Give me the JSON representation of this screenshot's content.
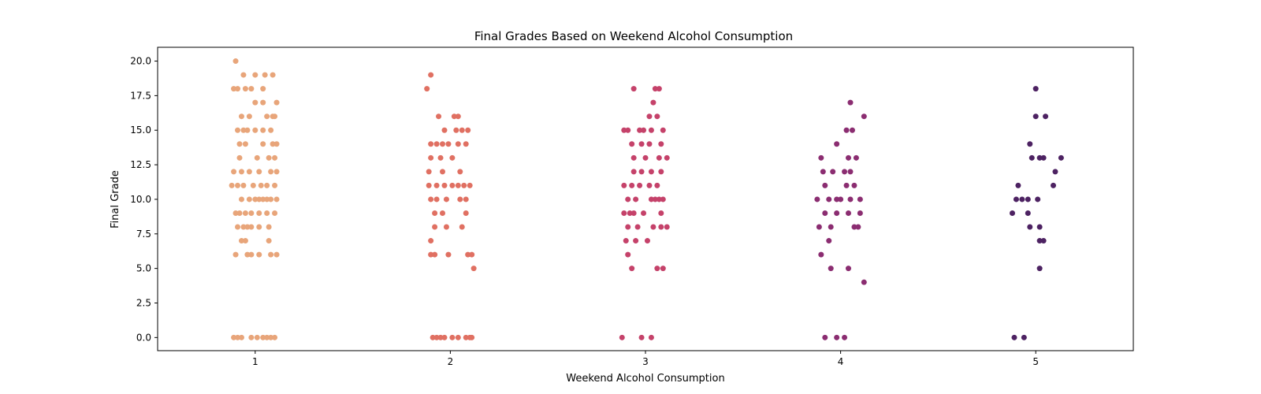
{
  "chart_data": {
    "type": "scatter",
    "subtype": "strip",
    "title": "Final Grades Based on Weekend Alcohol Consumption",
    "xlabel": "Weekend Alcohol Consumption",
    "ylabel": "Final Grade",
    "categories": [
      "1",
      "2",
      "3",
      "4",
      "5"
    ],
    "x_tick_labels": [
      "1",
      "2",
      "3",
      "4",
      "5"
    ],
    "y_tick_labels": [
      "0.0",
      "2.5",
      "5.0",
      "7.5",
      "10.0",
      "12.5",
      "15.0",
      "17.5",
      "20.0"
    ],
    "y_ticks": [
      0,
      2.5,
      5,
      7.5,
      10,
      12.5,
      15,
      17.5,
      20
    ],
    "ylim": [
      -0.95,
      21
    ],
    "xlim": [
      0.5,
      5.5
    ],
    "grid": false,
    "legend": "none",
    "colors": [
      "#e8a57a",
      "#e07062",
      "#c5426a",
      "#8b2d71",
      "#4d2262"
    ],
    "series": [
      {
        "category": "1",
        "color": "#e8a57a",
        "points": [
          {
            "x": -0.1,
            "y": 20
          },
          {
            "x": -0.11,
            "y": 18
          },
          {
            "x": -0.09,
            "y": 18
          },
          {
            "x": -0.05,
            "y": 18
          },
          {
            "x": 0.04,
            "y": 18
          },
          {
            "x": 0.0,
            "y": 19
          },
          {
            "x": 0.05,
            "y": 19
          },
          {
            "x": 0.09,
            "y": 19
          },
          {
            "x": -0.06,
            "y": 19
          },
          {
            "x": 0.04,
            "y": 17
          },
          {
            "x": 0.11,
            "y": 17
          },
          {
            "x": -0.02,
            "y": 18
          },
          {
            "x": 0.0,
            "y": 17
          },
          {
            "x": -0.07,
            "y": 16
          },
          {
            "x": -0.03,
            "y": 16
          },
          {
            "x": 0.06,
            "y": 16
          },
          {
            "x": 0.09,
            "y": 16
          },
          {
            "x": 0.1,
            "y": 16
          },
          {
            "x": -0.09,
            "y": 15
          },
          {
            "x": -0.06,
            "y": 15
          },
          {
            "x": -0.04,
            "y": 15
          },
          {
            "x": 0.0,
            "y": 15
          },
          {
            "x": 0.04,
            "y": 15
          },
          {
            "x": 0.08,
            "y": 15
          },
          {
            "x": -0.08,
            "y": 14
          },
          {
            "x": -0.05,
            "y": 14
          },
          {
            "x": 0.04,
            "y": 14
          },
          {
            "x": 0.09,
            "y": 14
          },
          {
            "x": 0.11,
            "y": 14
          },
          {
            "x": -0.08,
            "y": 13
          },
          {
            "x": 0.01,
            "y": 13
          },
          {
            "x": 0.07,
            "y": 13
          },
          {
            "x": 0.1,
            "y": 13
          },
          {
            "x": -0.11,
            "y": 12
          },
          {
            "x": -0.07,
            "y": 12
          },
          {
            "x": -0.03,
            "y": 12
          },
          {
            "x": 0.02,
            "y": 12
          },
          {
            "x": 0.08,
            "y": 12
          },
          {
            "x": 0.11,
            "y": 12
          },
          {
            "x": -0.12,
            "y": 11
          },
          {
            "x": -0.09,
            "y": 11
          },
          {
            "x": -0.06,
            "y": 11
          },
          {
            "x": -0.01,
            "y": 11
          },
          {
            "x": 0.03,
            "y": 11
          },
          {
            "x": 0.06,
            "y": 11
          },
          {
            "x": 0.1,
            "y": 11
          },
          {
            "x": -0.07,
            "y": 10
          },
          {
            "x": -0.03,
            "y": 10
          },
          {
            "x": 0.0,
            "y": 10
          },
          {
            "x": 0.02,
            "y": 10
          },
          {
            "x": 0.04,
            "y": 10
          },
          {
            "x": 0.06,
            "y": 10
          },
          {
            "x": 0.08,
            "y": 10
          },
          {
            "x": 0.11,
            "y": 10
          },
          {
            "x": -0.1,
            "y": 9
          },
          {
            "x": -0.08,
            "y": 9
          },
          {
            "x": -0.05,
            "y": 9
          },
          {
            "x": -0.02,
            "y": 9
          },
          {
            "x": 0.02,
            "y": 9
          },
          {
            "x": 0.06,
            "y": 9
          },
          {
            "x": 0.1,
            "y": 9
          },
          {
            "x": -0.09,
            "y": 8
          },
          {
            "x": -0.06,
            "y": 8
          },
          {
            "x": -0.04,
            "y": 8
          },
          {
            "x": -0.02,
            "y": 8
          },
          {
            "x": 0.02,
            "y": 8
          },
          {
            "x": 0.07,
            "y": 8
          },
          {
            "x": -0.07,
            "y": 7
          },
          {
            "x": -0.05,
            "y": 7
          },
          {
            "x": 0.07,
            "y": 7
          },
          {
            "x": -0.1,
            "y": 6
          },
          {
            "x": -0.04,
            "y": 6
          },
          {
            "x": -0.02,
            "y": 6
          },
          {
            "x": 0.02,
            "y": 6
          },
          {
            "x": 0.08,
            "y": 6
          },
          {
            "x": 0.11,
            "y": 6
          },
          {
            "x": -0.11,
            "y": 0
          },
          {
            "x": -0.09,
            "y": 0
          },
          {
            "x": -0.07,
            "y": 0
          },
          {
            "x": -0.02,
            "y": 0
          },
          {
            "x": 0.01,
            "y": 0
          },
          {
            "x": 0.04,
            "y": 0
          },
          {
            "x": 0.06,
            "y": 0
          },
          {
            "x": 0.08,
            "y": 0
          },
          {
            "x": 0.1,
            "y": 0
          }
        ]
      },
      {
        "category": "2",
        "color": "#e07062",
        "points": [
          {
            "x": -0.12,
            "y": 18
          },
          {
            "x": -0.1,
            "y": 19
          },
          {
            "x": -0.06,
            "y": 16
          },
          {
            "x": 0.02,
            "y": 16
          },
          {
            "x": 0.04,
            "y": 16
          },
          {
            "x": -0.1,
            "y": 14
          },
          {
            "x": -0.07,
            "y": 14
          },
          {
            "x": -0.04,
            "y": 14
          },
          {
            "x": -0.01,
            "y": 14
          },
          {
            "x": 0.04,
            "y": 14
          },
          {
            "x": 0.08,
            "y": 14
          },
          {
            "x": -0.03,
            "y": 15
          },
          {
            "x": 0.03,
            "y": 15
          },
          {
            "x": 0.06,
            "y": 15
          },
          {
            "x": 0.09,
            "y": 15
          },
          {
            "x": -0.1,
            "y": 13
          },
          {
            "x": -0.05,
            "y": 13
          },
          {
            "x": 0.01,
            "y": 13
          },
          {
            "x": -0.11,
            "y": 12
          },
          {
            "x": -0.04,
            "y": 12
          },
          {
            "x": 0.05,
            "y": 12
          },
          {
            "x": -0.11,
            "y": 11
          },
          {
            "x": -0.07,
            "y": 11
          },
          {
            "x": -0.03,
            "y": 11
          },
          {
            "x": 0.01,
            "y": 11
          },
          {
            "x": 0.04,
            "y": 11
          },
          {
            "x": 0.07,
            "y": 11
          },
          {
            "x": 0.1,
            "y": 11
          },
          {
            "x": -0.1,
            "y": 10
          },
          {
            "x": -0.07,
            "y": 10
          },
          {
            "x": -0.02,
            "y": 10
          },
          {
            "x": 0.05,
            "y": 10
          },
          {
            "x": 0.08,
            "y": 10
          },
          {
            "x": -0.08,
            "y": 9
          },
          {
            "x": -0.04,
            "y": 9
          },
          {
            "x": 0.08,
            "y": 9
          },
          {
            "x": -0.08,
            "y": 8
          },
          {
            "x": -0.02,
            "y": 8
          },
          {
            "x": 0.06,
            "y": 8
          },
          {
            "x": -0.1,
            "y": 7
          },
          {
            "x": -0.1,
            "y": 6
          },
          {
            "x": -0.08,
            "y": 6
          },
          {
            "x": -0.01,
            "y": 6
          },
          {
            "x": 0.09,
            "y": 6
          },
          {
            "x": 0.11,
            "y": 6
          },
          {
            "x": 0.12,
            "y": 5
          },
          {
            "x": -0.09,
            "y": 0
          },
          {
            "x": -0.07,
            "y": 0
          },
          {
            "x": -0.05,
            "y": 0
          },
          {
            "x": -0.03,
            "y": 0
          },
          {
            "x": 0.01,
            "y": 0
          },
          {
            "x": 0.04,
            "y": 0
          },
          {
            "x": 0.08,
            "y": 0
          },
          {
            "x": 0.1,
            "y": 0
          },
          {
            "x": 0.11,
            "y": 0
          }
        ]
      },
      {
        "category": "3",
        "color": "#c5426a",
        "points": [
          {
            "x": -0.12,
            "y": 0
          },
          {
            "x": -0.02,
            "y": 0
          },
          {
            "x": 0.03,
            "y": 0
          },
          {
            "x": -0.06,
            "y": 18
          },
          {
            "x": 0.05,
            "y": 18
          },
          {
            "x": 0.07,
            "y": 18
          },
          {
            "x": 0.04,
            "y": 17
          },
          {
            "x": 0.02,
            "y": 16
          },
          {
            "x": 0.06,
            "y": 16
          },
          {
            "x": -0.11,
            "y": 15
          },
          {
            "x": -0.09,
            "y": 15
          },
          {
            "x": -0.03,
            "y": 15
          },
          {
            "x": -0.01,
            "y": 15
          },
          {
            "x": 0.03,
            "y": 15
          },
          {
            "x": 0.09,
            "y": 15
          },
          {
            "x": -0.07,
            "y": 14
          },
          {
            "x": -0.02,
            "y": 14
          },
          {
            "x": 0.02,
            "y": 14
          },
          {
            "x": 0.08,
            "y": 14
          },
          {
            "x": -0.06,
            "y": 13
          },
          {
            "x": 0.0,
            "y": 13
          },
          {
            "x": 0.07,
            "y": 13
          },
          {
            "x": 0.11,
            "y": 13
          },
          {
            "x": -0.06,
            "y": 12
          },
          {
            "x": -0.02,
            "y": 12
          },
          {
            "x": 0.03,
            "y": 12
          },
          {
            "x": 0.08,
            "y": 12
          },
          {
            "x": -0.11,
            "y": 11
          },
          {
            "x": -0.07,
            "y": 11
          },
          {
            "x": -0.03,
            "y": 11
          },
          {
            "x": 0.02,
            "y": 11
          },
          {
            "x": 0.06,
            "y": 11
          },
          {
            "x": -0.09,
            "y": 10
          },
          {
            "x": -0.05,
            "y": 10
          },
          {
            "x": 0.03,
            "y": 10
          },
          {
            "x": 0.05,
            "y": 10
          },
          {
            "x": 0.07,
            "y": 10
          },
          {
            "x": 0.09,
            "y": 10
          },
          {
            "x": -0.11,
            "y": 9
          },
          {
            "x": -0.08,
            "y": 9
          },
          {
            "x": -0.06,
            "y": 9
          },
          {
            "x": -0.01,
            "y": 9
          },
          {
            "x": 0.08,
            "y": 9
          },
          {
            "x": -0.09,
            "y": 8
          },
          {
            "x": -0.04,
            "y": 8
          },
          {
            "x": 0.04,
            "y": 8
          },
          {
            "x": 0.08,
            "y": 8
          },
          {
            "x": 0.11,
            "y": 8
          },
          {
            "x": -0.1,
            "y": 7
          },
          {
            "x": -0.05,
            "y": 7
          },
          {
            "x": 0.01,
            "y": 7
          },
          {
            "x": -0.09,
            "y": 6
          },
          {
            "x": -0.07,
            "y": 5
          },
          {
            "x": 0.06,
            "y": 5
          },
          {
            "x": 0.09,
            "y": 5
          }
        ]
      },
      {
        "category": "4",
        "color": "#8b2d71",
        "points": [
          {
            "x": -0.1,
            "y": 13
          },
          {
            "x": -0.04,
            "y": 12
          },
          {
            "x": 0.04,
            "y": 13
          },
          {
            "x": 0.08,
            "y": 13
          },
          {
            "x": 0.05,
            "y": 17
          },
          {
            "x": 0.12,
            "y": 16
          },
          {
            "x": 0.03,
            "y": 15
          },
          {
            "x": 0.06,
            "y": 15
          },
          {
            "x": -0.02,
            "y": 14
          },
          {
            "x": -0.09,
            "y": 12
          },
          {
            "x": 0.02,
            "y": 12
          },
          {
            "x": 0.05,
            "y": 12
          },
          {
            "x": -0.08,
            "y": 11
          },
          {
            "x": 0.03,
            "y": 11
          },
          {
            "x": 0.07,
            "y": 11
          },
          {
            "x": -0.12,
            "y": 10
          },
          {
            "x": -0.06,
            "y": 10
          },
          {
            "x": -0.02,
            "y": 10
          },
          {
            "x": 0.0,
            "y": 10
          },
          {
            "x": 0.05,
            "y": 10
          },
          {
            "x": 0.1,
            "y": 10
          },
          {
            "x": -0.08,
            "y": 9
          },
          {
            "x": -0.02,
            "y": 9
          },
          {
            "x": 0.04,
            "y": 9
          },
          {
            "x": 0.1,
            "y": 9
          },
          {
            "x": -0.11,
            "y": 8
          },
          {
            "x": -0.05,
            "y": 8
          },
          {
            "x": 0.07,
            "y": 8
          },
          {
            "x": 0.09,
            "y": 8
          },
          {
            "x": -0.06,
            "y": 7
          },
          {
            "x": -0.1,
            "y": 6
          },
          {
            "x": -0.05,
            "y": 5
          },
          {
            "x": 0.04,
            "y": 5
          },
          {
            "x": 0.12,
            "y": 4
          },
          {
            "x": -0.08,
            "y": 0
          },
          {
            "x": -0.02,
            "y": 0
          },
          {
            "x": 0.02,
            "y": 0
          }
        ]
      },
      {
        "category": "5",
        "color": "#4d2262",
        "points": [
          {
            "x": 0.0,
            "y": 18
          },
          {
            "x": 0.0,
            "y": 16
          },
          {
            "x": 0.05,
            "y": 16
          },
          {
            "x": -0.03,
            "y": 14
          },
          {
            "x": -0.02,
            "y": 13
          },
          {
            "x": 0.02,
            "y": 13
          },
          {
            "x": 0.04,
            "y": 13
          },
          {
            "x": 0.13,
            "y": 13
          },
          {
            "x": 0.1,
            "y": 12
          },
          {
            "x": -0.09,
            "y": 11
          },
          {
            "x": 0.09,
            "y": 11
          },
          {
            "x": -0.1,
            "y": 10
          },
          {
            "x": -0.07,
            "y": 10
          },
          {
            "x": -0.04,
            "y": 10
          },
          {
            "x": 0.01,
            "y": 10
          },
          {
            "x": -0.12,
            "y": 9
          },
          {
            "x": -0.04,
            "y": 9
          },
          {
            "x": -0.03,
            "y": 8
          },
          {
            "x": 0.02,
            "y": 8
          },
          {
            "x": 0.02,
            "y": 7
          },
          {
            "x": 0.04,
            "y": 7
          },
          {
            "x": 0.02,
            "y": 5
          },
          {
            "x": -0.11,
            "y": 0
          },
          {
            "x": -0.06,
            "y": 0
          }
        ]
      }
    ]
  }
}
